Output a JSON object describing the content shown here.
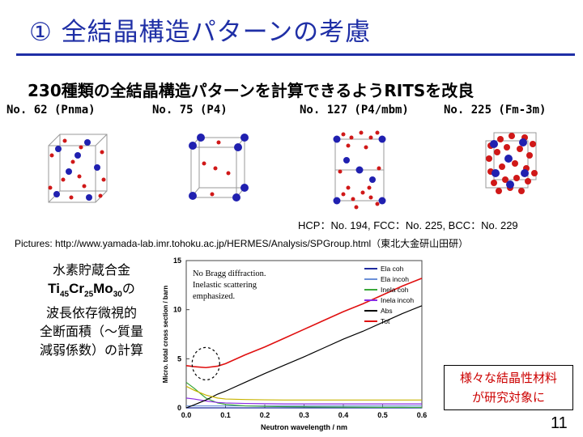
{
  "slide": {
    "title": "① 全結晶構造パターンの考慮",
    "subtitle": "230種類の全結晶構造パターンを計算できるようRITSを改良",
    "space_groups": [
      {
        "label": "No. 62 (Pnma)"
      },
      {
        "label": "No. 75 (P4)"
      },
      {
        "label": "No. 127 (P4/mbm)"
      },
      {
        "label": "No. 225 (Fm-3m)"
      }
    ],
    "lattice_note": "HCP：No. 194, FCC：No. 225, BCC：No. 229",
    "pictures_credit": "Pictures: http://www.yamada-lab.imr.tohoku.ac.jp/HERMES/Analysis/SPGroup.html（東北大金研山田研）",
    "left_caption": {
      "line1": "水素貯蔵合金",
      "material_parts": [
        {
          "el": "Ti",
          "sub": "45"
        },
        {
          "el": "Cr",
          "sub": "25"
        },
        {
          "el": "Mo",
          "sub": "30"
        }
      ],
      "material_suffix": "の",
      "line3": "波長依存微視的",
      "line4": "全断面積（～質量",
      "line5": "減弱係数）の計算"
    },
    "note_box": {
      "line1": "様々な結晶性材料",
      "line2": "が研究対象に"
    },
    "page_number": "11",
    "colors": {
      "title": "#1f2fa6",
      "note_text": "#cc0000",
      "atom_blue": "#2020b0",
      "atom_red": "#d01818"
    }
  },
  "chart_data": {
    "type": "line",
    "xlabel": "Neutron wavelength / nm",
    "ylabel": "Micro. total cross section / barn",
    "xlim": [
      0.0,
      0.6
    ],
    "ylim": [
      0,
      15
    ],
    "xticks": [
      "0.0",
      "0.1",
      "0.2",
      "0.3",
      "0.4",
      "0.5",
      "0.6"
    ],
    "yticks": [
      "0",
      "5",
      "10",
      "15"
    ],
    "legend_position": "top-right",
    "annotation": {
      "line1": "No Bragg diffraction.",
      "line2": "Inelastic scattering",
      "line3": "emphasized."
    },
    "x": [
      0.0,
      0.02,
      0.05,
      0.08,
      0.1,
      0.15,
      0.2,
      0.25,
      0.3,
      0.35,
      0.4,
      0.45,
      0.5,
      0.55,
      0.6
    ],
    "series": [
      {
        "name": "Ela coh",
        "color": "#1f2a9e",
        "values": [
          0.0,
          0.0,
          0.0,
          0.0,
          0.0,
          0.0,
          0.0,
          0.0,
          0.0,
          0.0,
          0.0,
          0.0,
          0.0,
          0.0,
          0.0
        ]
      },
      {
        "name": "Ela incoh",
        "color": "#6a8fd8",
        "values": [
          0.2,
          0.2,
          0.2,
          0.2,
          0.2,
          0.2,
          0.2,
          0.2,
          0.2,
          0.2,
          0.2,
          0.2,
          0.2,
          0.2,
          0.2
        ]
      },
      {
        "name": "Inela coh",
        "color": "#3aa83a",
        "values": [
          2.6,
          2.0,
          1.0,
          0.5,
          0.35,
          0.2,
          0.15,
          0.12,
          0.1,
          0.08,
          0.07,
          0.06,
          0.05,
          0.05,
          0.04
        ]
      },
      {
        "name": "Inela incoh",
        "color": "#8a2be2",
        "values": [
          1.0,
          0.9,
          0.7,
          0.55,
          0.5,
          0.45,
          0.42,
          0.4,
          0.4,
          0.4,
          0.4,
          0.4,
          0.4,
          0.4,
          0.4
        ]
      },
      {
        "name": "Abs",
        "color": "#000000",
        "values": [
          0.0,
          0.3,
          0.8,
          1.4,
          1.7,
          2.6,
          3.5,
          4.35,
          5.2,
          6.1,
          7.0,
          7.8,
          8.7,
          9.6,
          10.4
        ]
      },
      {
        "name": "Tot",
        "color": "#e01010",
        "values": [
          4.3,
          4.2,
          4.1,
          4.25,
          4.5,
          5.4,
          6.2,
          7.1,
          8.0,
          8.9,
          9.8,
          10.6,
          11.5,
          12.4,
          13.2
        ]
      },
      {
        "name": "",
        "color": "#c8b400",
        "values": [
          2.2,
          1.8,
          1.3,
          1.0,
          0.9,
          0.85,
          0.82,
          0.8,
          0.8,
          0.8,
          0.8,
          0.8,
          0.8,
          0.8,
          0.8
        ]
      }
    ],
    "highlight_circle": {
      "x": 0.05,
      "y": 4.5
    }
  }
}
